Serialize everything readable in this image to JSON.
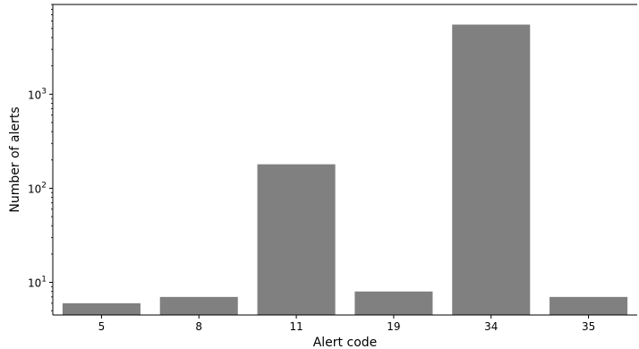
{
  "chart_data": {
    "type": "bar",
    "title": "",
    "xlabel": "Alert code",
    "ylabel": "Number of alerts",
    "categories": [
      "5",
      "8",
      "11",
      "19",
      "34",
      "35"
    ],
    "values": [
      6,
      7,
      180,
      8,
      5500,
      7
    ],
    "yscale": "log",
    "ylim": [
      4.5,
      9000
    ],
    "yticks": [
      {
        "value": 10,
        "base": "10",
        "exp": "1"
      },
      {
        "value": 100,
        "base": "10",
        "exp": "2"
      },
      {
        "value": 1000,
        "base": "10",
        "exp": "3"
      }
    ],
    "grid": false,
    "bar_color": "#808080"
  }
}
